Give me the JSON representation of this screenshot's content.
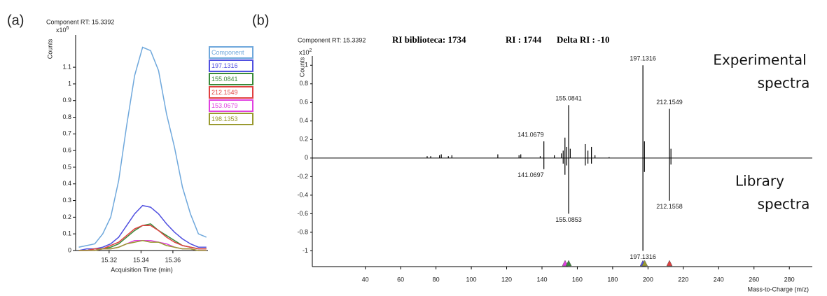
{
  "chart_data": [
    {
      "type": "line",
      "panel_label": "(a)",
      "title": "Component RT: 15.3392",
      "y_multiplier": {
        "base": "x10",
        "exponent": "6"
      },
      "ylabel": "Counts",
      "xlabel": "Acquisition Time (min)",
      "x": [
        15.301,
        15.306,
        15.311,
        15.316,
        15.321,
        15.326,
        15.331,
        15.336,
        15.341,
        15.346,
        15.351,
        15.356,
        15.361,
        15.366,
        15.371,
        15.376,
        15.381
      ],
      "series": [
        {
          "name": "Component",
          "color": "#6fa8dc",
          "values": [
            0.02,
            0.03,
            0.04,
            0.1,
            0.2,
            0.42,
            0.75,
            1.05,
            1.22,
            1.2,
            1.08,
            0.82,
            0.62,
            0.38,
            0.22,
            0.1,
            0.08
          ]
        },
        {
          "name": "197.1316",
          "color": "#5050e0",
          "values": [
            0,
            0.01,
            0.01,
            0.02,
            0.04,
            0.08,
            0.15,
            0.22,
            0.27,
            0.26,
            0.22,
            0.16,
            0.11,
            0.07,
            0.04,
            0.02,
            0.02
          ]
        },
        {
          "name": "155.0841",
          "color": "#3a8a3a",
          "values": [
            0,
            0,
            0.01,
            0.01,
            0.02,
            0.04,
            0.08,
            0.12,
            0.15,
            0.16,
            0.12,
            0.09,
            0.06,
            0.03,
            0.02,
            0.01,
            0.01
          ]
        },
        {
          "name": "212.1549",
          "color": "#e04040",
          "values": [
            0,
            0,
            0.01,
            0.01,
            0.03,
            0.05,
            0.09,
            0.13,
            0.15,
            0.15,
            0.12,
            0.08,
            0.05,
            0.03,
            0.02,
            0.01,
            0.01
          ]
        },
        {
          "name": "153.0679",
          "color": "#e040e0",
          "values": [
            0,
            0,
            0,
            0.01,
            0.01,
            0.02,
            0.04,
            0.06,
            0.06,
            0.06,
            0.05,
            0.04,
            0.02,
            0.01,
            0.01,
            0,
            0
          ]
        },
        {
          "name": "198.1353",
          "color": "#9a9a30",
          "values": [
            0,
            0,
            0,
            0.01,
            0.01,
            0.02,
            0.04,
            0.05,
            0.06,
            0.05,
            0.05,
            0.03,
            0.02,
            0.01,
            0.01,
            0,
            0
          ]
        }
      ],
      "xlim": [
        15.299,
        15.382
      ],
      "xticks": [
        15.32,
        15.34,
        15.36
      ],
      "ylim": [
        0,
        1.26
      ],
      "yticks": [
        0,
        0.1,
        0.2,
        0.3,
        0.4,
        0.5,
        0.6,
        0.7,
        0.8,
        0.9,
        1,
        1.1
      ]
    },
    {
      "type": "spectrum",
      "panel_label": "(b)",
      "title": "Component RT: 15.3392",
      "ri_labels": [
        "RI biblioteca: 1734",
        "RI : 1744",
        "Delta RI : -10"
      ],
      "y_multiplier": {
        "base": "x10",
        "exponent": "2"
      },
      "ylabel": "Counts",
      "xlabel": "Mass-to-Charge (m/z)",
      "annotations": [
        [
          "Experimental",
          "spectra"
        ],
        [
          "Library",
          "spectra"
        ]
      ],
      "series": [
        {
          "color": "#000000",
          "x": [
            75,
            77,
            82,
            83,
            87,
            89,
            115,
            127,
            128,
            139,
            141.0679,
            147,
            151,
            152,
            153,
            154,
            155.0841,
            156,
            164.5,
            166,
            168,
            170,
            178,
            197.1316,
            198,
            212.1549,
            213
          ],
          "values": [
            0.02,
            0.02,
            0.03,
            0.04,
            0.02,
            0.03,
            0.04,
            0.03,
            0.04,
            0.02,
            0.18,
            0.03,
            0.05,
            0.08,
            0.22,
            0.12,
            0.57,
            0.1,
            0.15,
            0.08,
            0.12,
            0.03,
            0.01,
            1.0,
            0.18,
            0.53,
            0.1
          ]
        },
        {
          "color": "#000000",
          "x": [
            141.0697,
            152,
            153,
            154,
            155.0853,
            164.5,
            166,
            168,
            197.1316,
            198,
            212.1558,
            213
          ],
          "values": [
            -0.12,
            -0.06,
            -0.18,
            -0.08,
            -0.6,
            -0.08,
            -0.06,
            -0.06,
            -1.0,
            -0.15,
            -0.46,
            -0.07
          ]
        }
      ],
      "peak_labels": [
        {
          "label": "197.1316",
          "x": 197.1316,
          "y": 1.0
        },
        {
          "label": "155.0841",
          "x": 155.0841,
          "y": 0.57
        },
        {
          "label": "212.1549",
          "x": 212.1549,
          "y": 0.53
        },
        {
          "label": "141.0679",
          "x": 141.0679,
          "y": 0.18
        },
        {
          "label": "141.0697",
          "x": 141.0697,
          "y": -0.12
        },
        {
          "label": "155.0853",
          "x": 155.0853,
          "y": -0.6
        },
        {
          "label": "212.1558",
          "x": 212.1558,
          "y": -0.46
        },
        {
          "label": "197.1316",
          "x": 197.1316,
          "y": -1.0
        }
      ],
      "markers": [
        {
          "x": 153.0679,
          "color": "#e040e0"
        },
        {
          "x": 155.0841,
          "color": "#3a8a3a"
        },
        {
          "x": 197.1316,
          "color": "#5050e0"
        },
        {
          "x": 198.1353,
          "color": "#9a9a30"
        },
        {
          "x": 212.1549,
          "color": "#e04040"
        }
      ],
      "xlim": [
        10,
        293
      ],
      "xticks": [
        40,
        60,
        80,
        100,
        120,
        140,
        160,
        180,
        200,
        220,
        240,
        260,
        280
      ],
      "ylim": [
        -1.17,
        1.1
      ],
      "yticks": [
        -1,
        -0.8,
        -0.6,
        -0.4,
        -0.2,
        0,
        0.2,
        0.4,
        0.6,
        0.8,
        1
      ]
    }
  ]
}
